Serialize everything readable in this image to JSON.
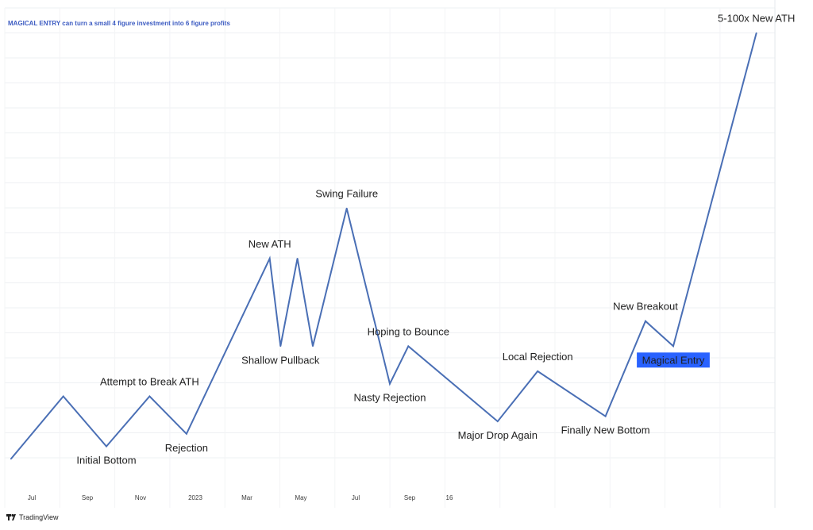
{
  "chart_data": {
    "type": "line",
    "title": "MAGICAL ENTRY can turn a small 4 figure investment into 6 figure profits",
    "xlabel": "",
    "ylabel": "",
    "x_ticks": [
      "Jul",
      "Sep",
      "Nov",
      "2023",
      "Mar",
      "May",
      "Jul",
      "Sep",
      "16"
    ],
    "grid": true,
    "series": [
      {
        "color": "#4a6fb5",
        "points": [
          {
            "x": 0.2,
            "y": 0.5
          },
          {
            "x": 1.9,
            "y": 3.0
          },
          {
            "x": 3.3,
            "y": 1.0
          },
          {
            "x": 4.7,
            "y": 3.0
          },
          {
            "x": 5.9,
            "y": 1.5
          },
          {
            "x": 8.6,
            "y": 8.5
          },
          {
            "x": 8.95,
            "y": 5.0
          },
          {
            "x": 9.5,
            "y": 8.5
          },
          {
            "x": 10.0,
            "y": 5.0
          },
          {
            "x": 11.1,
            "y": 10.5
          },
          {
            "x": 12.5,
            "y": 3.5
          },
          {
            "x": 13.1,
            "y": 5.0
          },
          {
            "x": 16.0,
            "y": 2.0
          },
          {
            "x": 17.3,
            "y": 4.0
          },
          {
            "x": 19.5,
            "y": 2.2
          },
          {
            "x": 20.8,
            "y": 6.0
          },
          {
            "x": 21.7,
            "y": 5.0
          },
          {
            "x": 24.4,
            "y": 17.5
          }
        ]
      }
    ],
    "annotations": [
      {
        "text": "Initial Bottom",
        "point": 2,
        "position": "below"
      },
      {
        "text": "Attempt to Break ATH",
        "point": 3,
        "position": "above"
      },
      {
        "text": "Rejection",
        "point": 4,
        "position": "below"
      },
      {
        "text": "New ATH",
        "point": 5,
        "position": "above"
      },
      {
        "text": "Shallow Pullback",
        "point": 6,
        "position": "below"
      },
      {
        "text": "Swing Failure",
        "point": 9,
        "position": "above"
      },
      {
        "text": "Nasty Rejection",
        "point": 10,
        "position": "below"
      },
      {
        "text": "Hoping to Bounce",
        "point": 11,
        "position": "above"
      },
      {
        "text": "Major Drop Again",
        "point": 12,
        "position": "below"
      },
      {
        "text": "Local Rejection",
        "point": 13,
        "position": "above"
      },
      {
        "text": "Finally New Bottom",
        "point": 14,
        "position": "below"
      },
      {
        "text": "New Breakout",
        "point": 15,
        "position": "above"
      },
      {
        "text": "Magical Entry",
        "point": 16,
        "position": "below",
        "highlight": true,
        "highlight_color": "#2962ff"
      },
      {
        "text": "5-100x New ATH",
        "point": 17,
        "position": "above"
      }
    ]
  },
  "footer": {
    "brand_label": "TradingView",
    "brand_logo": "tradingview-logo-icon"
  }
}
